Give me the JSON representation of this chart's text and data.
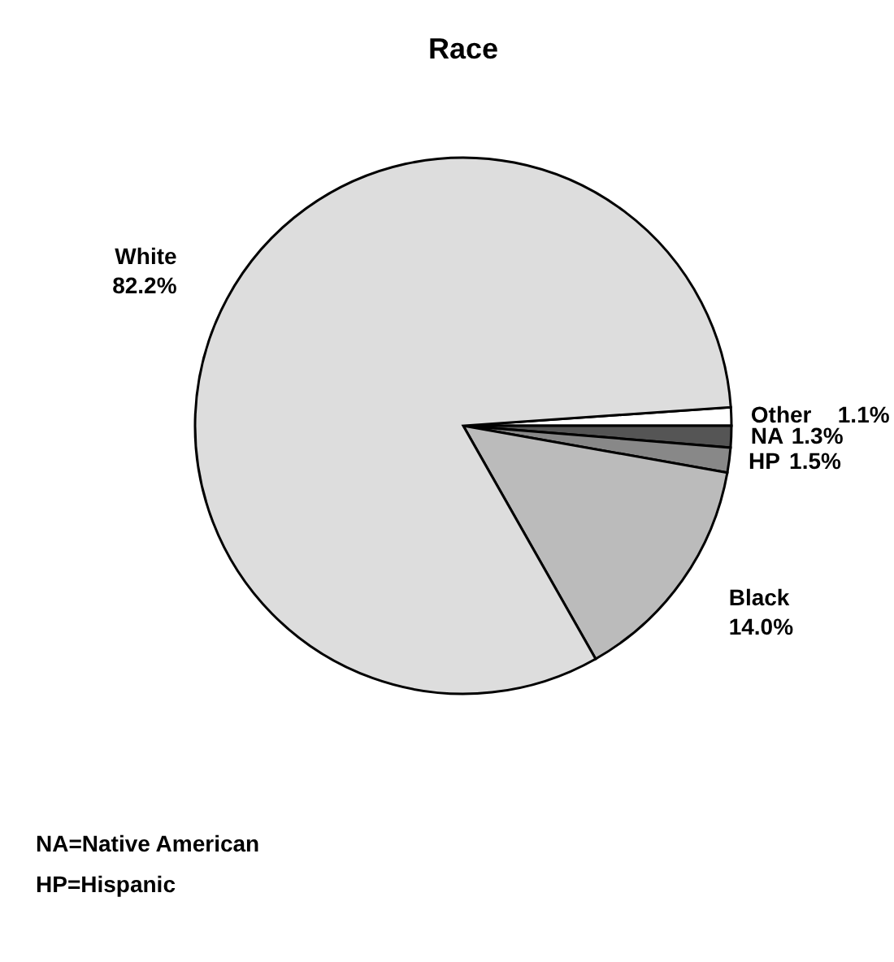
{
  "chart_data": {
    "type": "pie",
    "title": "Race",
    "categories": [
      "Other",
      "NA",
      "HP",
      "Black",
      "White"
    ],
    "values": [
      1.1,
      1.3,
      1.5,
      14.0,
      82.2
    ],
    "colors": [
      "#ffffff",
      "#555555",
      "#888888",
      "#bbbbbb",
      "#dddddd"
    ],
    "value_labels": [
      "1.1%",
      "1.3%",
      "1.5%",
      "14.0%",
      "82.2%"
    ],
    "annotations": [
      "NA=Native American",
      "HP=Hispanic"
    ]
  }
}
